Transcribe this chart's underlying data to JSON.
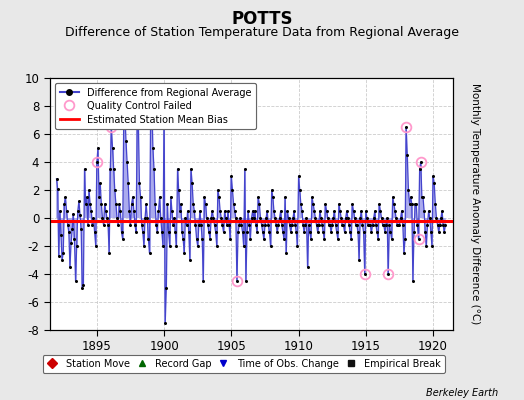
{
  "title": "POTTS",
  "subtitle": "Difference of Station Temperature Data from Regional Average",
  "ylabel_right": "Monthly Temperature Anomaly Difference (°C)",
  "xlim": [
    1891.5,
    1921.5
  ],
  "ylim": [
    -8,
    10
  ],
  "yticks": [
    -8,
    -6,
    -4,
    -2,
    0,
    2,
    4,
    6,
    8,
    10
  ],
  "xticks": [
    1895,
    1900,
    1905,
    1910,
    1915,
    1920
  ],
  "mean_bias": -0.18,
  "background_color": "#e8e8e8",
  "plot_bg_color": "#ffffff",
  "grid_color": "#cccccc",
  "line_color": "#4444cc",
  "line_fill_color": "#aaaaee",
  "dot_color": "#000000",
  "bias_color": "#ff0000",
  "qc_color": "#ff99cc",
  "title_fontsize": 12,
  "subtitle_fontsize": 9,
  "watermark": "Berkeley Earth",
  "time_series": [
    [
      1892.0,
      2.8
    ],
    [
      1892.083,
      2.1
    ],
    [
      1892.167,
      -2.7
    ],
    [
      1892.25,
      0.5
    ],
    [
      1892.333,
      -1.2
    ],
    [
      1892.417,
      -3.0
    ],
    [
      1892.5,
      -2.5
    ],
    [
      1892.583,
      1.0
    ],
    [
      1892.667,
      1.5
    ],
    [
      1892.75,
      0.5
    ],
    [
      1892.833,
      -0.5
    ],
    [
      1892.917,
      -1.0
    ],
    [
      1893.0,
      -3.5
    ],
    [
      1893.083,
      -1.8
    ],
    [
      1893.167,
      -0.8
    ],
    [
      1893.25,
      0.3
    ],
    [
      1893.333,
      -1.5
    ],
    [
      1893.417,
      -4.5
    ],
    [
      1893.5,
      -2.0
    ],
    [
      1893.583,
      0.5
    ],
    [
      1893.667,
      1.2
    ],
    [
      1893.75,
      0.2
    ],
    [
      1893.833,
      -0.8
    ],
    [
      1893.917,
      -5.0
    ],
    [
      1894.0,
      -4.8
    ],
    [
      1894.083,
      3.5
    ],
    [
      1894.167,
      1.0
    ],
    [
      1894.25,
      1.5
    ],
    [
      1894.333,
      -0.5
    ],
    [
      1894.417,
      2.0
    ],
    [
      1894.5,
      1.0
    ],
    [
      1894.583,
      0.5
    ],
    [
      1894.667,
      -0.5
    ],
    [
      1894.75,
      0.0
    ],
    [
      1894.833,
      -1.0
    ],
    [
      1894.917,
      -2.0
    ],
    [
      1895.0,
      4.0
    ],
    [
      1895.083,
      5.0
    ],
    [
      1895.167,
      1.5
    ],
    [
      1895.25,
      2.5
    ],
    [
      1895.333,
      1.0
    ],
    [
      1895.417,
      0.0
    ],
    [
      1895.5,
      -0.5
    ],
    [
      1895.583,
      1.0
    ],
    [
      1895.667,
      0.5
    ],
    [
      1895.75,
      0.0
    ],
    [
      1895.833,
      -0.5
    ],
    [
      1895.917,
      -2.5
    ],
    [
      1896.0,
      3.5
    ],
    [
      1896.083,
      6.5
    ],
    [
      1896.167,
      5.0
    ],
    [
      1896.25,
      3.5
    ],
    [
      1896.333,
      2.0
    ],
    [
      1896.417,
      1.0
    ],
    [
      1896.5,
      0.0
    ],
    [
      1896.583,
      -0.5
    ],
    [
      1896.667,
      1.0
    ],
    [
      1896.75,
      0.5
    ],
    [
      1896.833,
      -1.0
    ],
    [
      1896.917,
      -1.5
    ],
    [
      1897.0,
      7.0
    ],
    [
      1897.083,
      7.5
    ],
    [
      1897.167,
      5.5
    ],
    [
      1897.25,
      4.0
    ],
    [
      1897.333,
      2.5
    ],
    [
      1897.417,
      0.5
    ],
    [
      1897.5,
      -0.5
    ],
    [
      1897.583,
      1.0
    ],
    [
      1897.667,
      1.5
    ],
    [
      1897.75,
      0.5
    ],
    [
      1897.833,
      -0.5
    ],
    [
      1897.917,
      -1.0
    ],
    [
      1898.0,
      6.5
    ],
    [
      1898.083,
      7.0
    ],
    [
      1898.167,
      2.5
    ],
    [
      1898.25,
      1.5
    ],
    [
      1898.333,
      -0.5
    ],
    [
      1898.417,
      -1.0
    ],
    [
      1898.5,
      -2.0
    ],
    [
      1898.583,
      0.0
    ],
    [
      1898.667,
      1.0
    ],
    [
      1898.75,
      0.0
    ],
    [
      1898.833,
      -1.5
    ],
    [
      1898.917,
      -2.5
    ],
    [
      1899.0,
      7.5
    ],
    [
      1899.083,
      8.5
    ],
    [
      1899.167,
      5.0
    ],
    [
      1899.25,
      3.5
    ],
    [
      1899.333,
      1.0
    ],
    [
      1899.417,
      -0.5
    ],
    [
      1899.5,
      -1.0
    ],
    [
      1899.583,
      0.5
    ],
    [
      1899.667,
      1.5
    ],
    [
      1899.75,
      0.0
    ],
    [
      1899.833,
      -1.0
    ],
    [
      1899.917,
      -2.0
    ],
    [
      1900.0,
      7.8
    ],
    [
      1900.083,
      -7.5
    ],
    [
      1900.167,
      -5.0
    ],
    [
      1900.25,
      1.0
    ],
    [
      1900.333,
      -1.0
    ],
    [
      1900.417,
      -2.0
    ],
    [
      1900.5,
      1.5
    ],
    [
      1900.583,
      0.5
    ],
    [
      1900.667,
      -0.5
    ],
    [
      1900.75,
      0.0
    ],
    [
      1900.833,
      -1.0
    ],
    [
      1900.917,
      -2.0
    ],
    [
      1901.0,
      3.5
    ],
    [
      1901.083,
      2.0
    ],
    [
      1901.167,
      0.5
    ],
    [
      1901.25,
      1.0
    ],
    [
      1901.333,
      -1.0
    ],
    [
      1901.417,
      -1.5
    ],
    [
      1901.5,
      -2.5
    ],
    [
      1901.583,
      0.0
    ],
    [
      1901.667,
      -0.5
    ],
    [
      1901.75,
      0.5
    ],
    [
      1901.833,
      -1.0
    ],
    [
      1901.917,
      -3.0
    ],
    [
      1902.0,
      3.5
    ],
    [
      1902.083,
      2.5
    ],
    [
      1902.167,
      1.0
    ],
    [
      1902.25,
      0.5
    ],
    [
      1902.333,
      -0.5
    ],
    [
      1902.417,
      -1.5
    ],
    [
      1902.5,
      -2.0
    ],
    [
      1902.583,
      -0.5
    ],
    [
      1902.667,
      0.5
    ],
    [
      1902.75,
      -0.5
    ],
    [
      1902.833,
      -1.5
    ],
    [
      1902.917,
      -4.5
    ],
    [
      1903.0,
      1.5
    ],
    [
      1903.083,
      1.0
    ],
    [
      1903.167,
      0.0
    ],
    [
      1903.25,
      -0.5
    ],
    [
      1903.333,
      -1.0
    ],
    [
      1903.417,
      -1.5
    ],
    [
      1903.5,
      0.0
    ],
    [
      1903.583,
      0.5
    ],
    [
      1903.667,
      0.0
    ],
    [
      1903.75,
      -0.5
    ],
    [
      1903.833,
      -1.0
    ],
    [
      1903.917,
      -2.0
    ],
    [
      1904.0,
      2.0
    ],
    [
      1904.083,
      1.5
    ],
    [
      1904.167,
      0.5
    ],
    [
      1904.25,
      0.0
    ],
    [
      1904.333,
      -0.5
    ],
    [
      1904.417,
      -1.0
    ],
    [
      1904.5,
      0.5
    ],
    [
      1904.583,
      0.0
    ],
    [
      1904.667,
      -0.5
    ],
    [
      1904.75,
      0.5
    ],
    [
      1904.833,
      -0.5
    ],
    [
      1904.917,
      -1.5
    ],
    [
      1905.0,
      3.0
    ],
    [
      1905.083,
      2.0
    ],
    [
      1905.167,
      1.0
    ],
    [
      1905.25,
      0.5
    ],
    [
      1905.333,
      0.0
    ],
    [
      1905.417,
      -4.5
    ],
    [
      1905.5,
      -1.0
    ],
    [
      1905.583,
      -0.5
    ],
    [
      1905.667,
      0.0
    ],
    [
      1905.75,
      -0.5
    ],
    [
      1905.833,
      -1.0
    ],
    [
      1905.917,
      -2.0
    ],
    [
      1906.0,
      3.5
    ],
    [
      1906.083,
      -4.5
    ],
    [
      1906.167,
      -1.0
    ],
    [
      1906.25,
      0.5
    ],
    [
      1906.333,
      -0.5
    ],
    [
      1906.417,
      -1.5
    ],
    [
      1906.5,
      0.0
    ],
    [
      1906.583,
      0.5
    ],
    [
      1906.667,
      0.0
    ],
    [
      1906.75,
      0.5
    ],
    [
      1906.833,
      -0.5
    ],
    [
      1906.917,
      -1.0
    ],
    [
      1907.0,
      1.5
    ],
    [
      1907.083,
      1.0
    ],
    [
      1907.167,
      0.0
    ],
    [
      1907.25,
      -0.5
    ],
    [
      1907.333,
      -1.0
    ],
    [
      1907.417,
      -1.5
    ],
    [
      1907.5,
      -0.5
    ],
    [
      1907.583,
      0.0
    ],
    [
      1907.667,
      0.5
    ],
    [
      1907.75,
      -0.5
    ],
    [
      1907.833,
      -1.0
    ],
    [
      1907.917,
      -2.0
    ],
    [
      1908.0,
      2.0
    ],
    [
      1908.083,
      1.5
    ],
    [
      1908.167,
      0.5
    ],
    [
      1908.25,
      0.0
    ],
    [
      1908.333,
      -0.5
    ],
    [
      1908.417,
      -1.0
    ],
    [
      1908.5,
      -0.5
    ],
    [
      1908.583,
      0.0
    ],
    [
      1908.667,
      0.5
    ],
    [
      1908.75,
      -0.5
    ],
    [
      1908.833,
      -1.0
    ],
    [
      1908.917,
      -1.5
    ],
    [
      1909.0,
      1.5
    ],
    [
      1909.083,
      -2.5
    ],
    [
      1909.167,
      0.5
    ],
    [
      1909.25,
      0.0
    ],
    [
      1909.333,
      -0.5
    ],
    [
      1909.417,
      -1.0
    ],
    [
      1909.5,
      -0.5
    ],
    [
      1909.583,
      0.0
    ],
    [
      1909.667,
      0.5
    ],
    [
      1909.75,
      -0.5
    ],
    [
      1909.833,
      -1.0
    ],
    [
      1909.917,
      -2.0
    ],
    [
      1910.0,
      3.0
    ],
    [
      1910.083,
      2.0
    ],
    [
      1910.167,
      1.0
    ],
    [
      1910.25,
      0.5
    ],
    [
      1910.333,
      -0.5
    ],
    [
      1910.417,
      -1.0
    ],
    [
      1910.5,
      -0.5
    ],
    [
      1910.583,
      0.0
    ],
    [
      1910.667,
      -3.5
    ],
    [
      1910.75,
      -0.5
    ],
    [
      1910.833,
      -1.0
    ],
    [
      1910.917,
      -1.5
    ],
    [
      1911.0,
      1.5
    ],
    [
      1911.083,
      1.0
    ],
    [
      1911.167,
      0.5
    ],
    [
      1911.25,
      0.0
    ],
    [
      1911.333,
      -0.5
    ],
    [
      1911.417,
      -1.0
    ],
    [
      1911.5,
      -0.5
    ],
    [
      1911.583,
      0.5
    ],
    [
      1911.667,
      0.0
    ],
    [
      1911.75,
      -0.5
    ],
    [
      1911.833,
      -1.0
    ],
    [
      1911.917,
      -1.5
    ],
    [
      1912.0,
      1.0
    ],
    [
      1912.083,
      0.5
    ],
    [
      1912.167,
      0.0
    ],
    [
      1912.25,
      -0.5
    ],
    [
      1912.333,
      -0.5
    ],
    [
      1912.417,
      -1.0
    ],
    [
      1912.5,
      -0.5
    ],
    [
      1912.583,
      0.0
    ],
    [
      1912.667,
      0.5
    ],
    [
      1912.75,
      -0.5
    ],
    [
      1912.833,
      -1.0
    ],
    [
      1912.917,
      -1.5
    ],
    [
      1913.0,
      1.0
    ],
    [
      1913.083,
      0.5
    ],
    [
      1913.167,
      0.0
    ],
    [
      1913.25,
      -0.5
    ],
    [
      1913.333,
      -0.5
    ],
    [
      1913.417,
      -1.0
    ],
    [
      1913.5,
      0.0
    ],
    [
      1913.583,
      0.5
    ],
    [
      1913.667,
      0.0
    ],
    [
      1913.75,
      -0.5
    ],
    [
      1913.833,
      -1.0
    ],
    [
      1913.917,
      -1.5
    ],
    [
      1914.0,
      1.0
    ],
    [
      1914.083,
      0.5
    ],
    [
      1914.167,
      0.0
    ],
    [
      1914.25,
      -0.5
    ],
    [
      1914.333,
      -0.5
    ],
    [
      1914.417,
      -1.0
    ],
    [
      1914.5,
      -3.0
    ],
    [
      1914.583,
      0.0
    ],
    [
      1914.667,
      0.5
    ],
    [
      1914.75,
      -0.5
    ],
    [
      1914.833,
      -1.0
    ],
    [
      1914.917,
      -4.0
    ],
    [
      1915.0,
      0.5
    ],
    [
      1915.083,
      0.0
    ],
    [
      1915.167,
      -0.5
    ],
    [
      1915.25,
      -0.5
    ],
    [
      1915.333,
      -0.5
    ],
    [
      1915.417,
      -1.0
    ],
    [
      1915.5,
      -0.5
    ],
    [
      1915.583,
      0.0
    ],
    [
      1915.667,
      0.5
    ],
    [
      1915.75,
      -0.5
    ],
    [
      1915.833,
      -1.0
    ],
    [
      1915.917,
      -1.5
    ],
    [
      1916.0,
      1.0
    ],
    [
      1916.083,
      0.5
    ],
    [
      1916.167,
      0.0
    ],
    [
      1916.25,
      -0.5
    ],
    [
      1916.333,
      -0.5
    ],
    [
      1916.417,
      -1.0
    ],
    [
      1916.5,
      -0.5
    ],
    [
      1916.583,
      0.0
    ],
    [
      1916.667,
      -4.0
    ],
    [
      1916.75,
      -0.5
    ],
    [
      1916.833,
      -1.0
    ],
    [
      1916.917,
      -1.5
    ],
    [
      1917.0,
      1.5
    ],
    [
      1917.083,
      1.0
    ],
    [
      1917.167,
      0.5
    ],
    [
      1917.25,
      0.0
    ],
    [
      1917.333,
      -0.5
    ],
    [
      1917.417,
      -0.5
    ],
    [
      1917.5,
      -0.5
    ],
    [
      1917.583,
      0.0
    ],
    [
      1917.667,
      0.5
    ],
    [
      1917.75,
      -0.5
    ],
    [
      1917.833,
      -2.5
    ],
    [
      1917.917,
      -1.5
    ],
    [
      1918.0,
      6.5
    ],
    [
      1918.083,
      4.5
    ],
    [
      1918.167,
      2.0
    ],
    [
      1918.25,
      1.0
    ],
    [
      1918.333,
      1.5
    ],
    [
      1918.417,
      1.0
    ],
    [
      1918.5,
      -4.5
    ],
    [
      1918.583,
      -1.0
    ],
    [
      1918.667,
      1.0
    ],
    [
      1918.75,
      1.0
    ],
    [
      1918.833,
      -0.5
    ],
    [
      1918.917,
      -1.5
    ],
    [
      1919.0,
      3.5
    ],
    [
      1919.083,
      4.0
    ],
    [
      1919.167,
      1.5
    ],
    [
      1919.25,
      1.5
    ],
    [
      1919.333,
      0.5
    ],
    [
      1919.417,
      -1.0
    ],
    [
      1919.5,
      -2.0
    ],
    [
      1919.583,
      -0.5
    ],
    [
      1919.667,
      0.5
    ],
    [
      1919.75,
      0.0
    ],
    [
      1919.833,
      -1.0
    ],
    [
      1919.917,
      -2.0
    ],
    [
      1920.0,
      3.0
    ],
    [
      1920.083,
      2.5
    ],
    [
      1920.167,
      1.0
    ],
    [
      1920.25,
      0.0
    ],
    [
      1920.333,
      -0.5
    ],
    [
      1920.417,
      -1.0
    ],
    [
      1920.5,
      -0.5
    ],
    [
      1920.583,
      0.0
    ],
    [
      1920.667,
      0.5
    ],
    [
      1920.75,
      -0.5
    ],
    [
      1920.833,
      -1.0
    ],
    [
      1920.917,
      -0.5
    ]
  ],
  "qc_failed": [
    [
      1895.0,
      4.0
    ],
    [
      1896.083,
      6.5
    ],
    [
      1897.0,
      7.0
    ],
    [
      1897.083,
      7.5
    ],
    [
      1899.0,
      7.5
    ],
    [
      1899.083,
      8.5
    ],
    [
      1900.0,
      7.8
    ],
    [
      1905.417,
      -4.5
    ],
    [
      1914.917,
      -4.0
    ],
    [
      1916.667,
      -4.0
    ],
    [
      1918.0,
      6.5
    ],
    [
      1918.917,
      -1.5
    ],
    [
      1919.083,
      4.0
    ]
  ]
}
